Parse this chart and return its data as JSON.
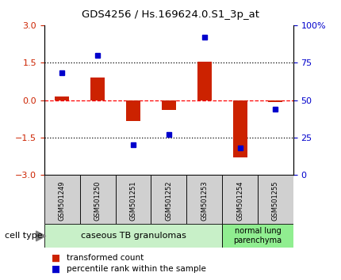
{
  "title": "GDS4256 / Hs.169624.0.S1_3p_at",
  "samples": [
    "GSM501249",
    "GSM501250",
    "GSM501251",
    "GSM501252",
    "GSM501253",
    "GSM501254",
    "GSM501255"
  ],
  "red_values": [
    0.15,
    0.9,
    -0.85,
    -0.4,
    1.55,
    -2.3,
    -0.08
  ],
  "blue_percentiles": [
    68,
    80,
    20,
    27,
    92,
    18,
    44
  ],
  "ylim_left": [
    -3,
    3
  ],
  "ylim_right": [
    0,
    100
  ],
  "yticks_left": [
    -3,
    -1.5,
    0,
    1.5,
    3
  ],
  "yticks_right": [
    0,
    25,
    50,
    75,
    100
  ],
  "ytick_labels_right": [
    "0",
    "25",
    "50",
    "75",
    "100%"
  ],
  "red_color": "#cc2200",
  "blue_color": "#0000cc",
  "bar_width": 0.4,
  "group1_label": "caseous TB granulomas",
  "group1_indices": [
    0,
    1,
    2,
    3,
    4
  ],
  "group2_label": "normal lung\nparenchyma",
  "group2_indices": [
    5,
    6
  ],
  "group1_color": "#c8f0c8",
  "group2_color": "#90ee90",
  "cell_type_label": "cell type",
  "legend_red": "transformed count",
  "legend_blue": "percentile rank within the sample",
  "tick_bg_color": "#d0d0d0",
  "background_color": "#ffffff"
}
